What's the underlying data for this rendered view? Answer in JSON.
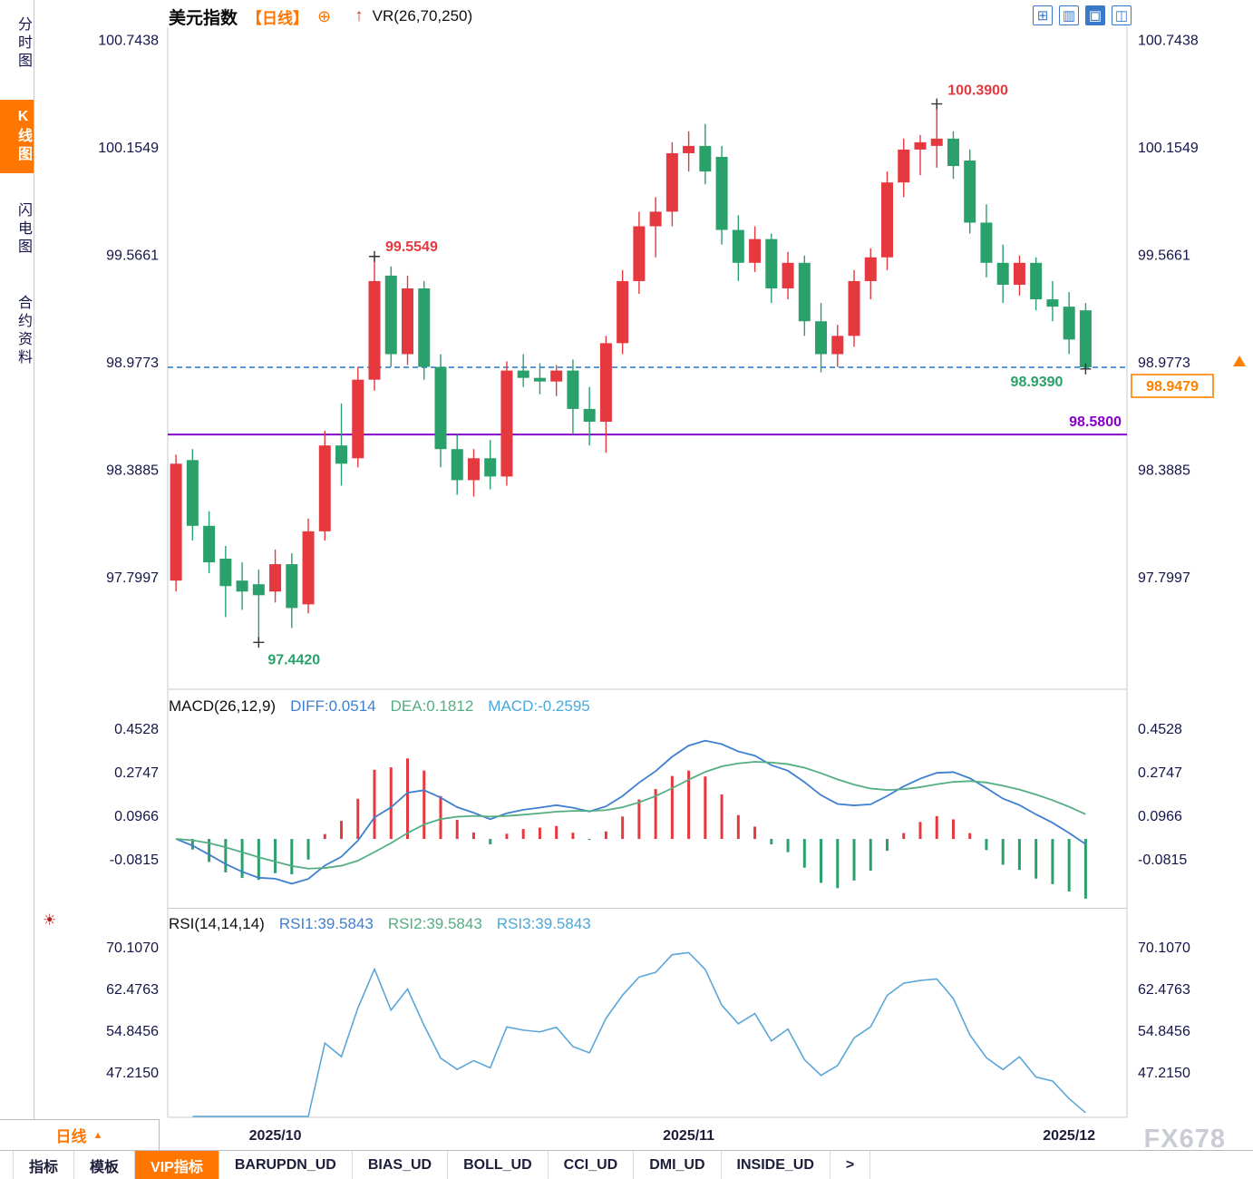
{
  "header": {
    "symbol": "美元指数",
    "period_tag": "【日线】",
    "indicator_label": "VR(26,70,250)",
    "icons": {
      "add_icon": "⊕",
      "up_arrow_icon": "↑"
    },
    "layout_icons": [
      {
        "name": "layout-quad-icon",
        "glyph": "⊞",
        "active": false
      },
      {
        "name": "layout-columns-icon",
        "glyph": "▥",
        "active": false
      },
      {
        "name": "layout-chart-icon",
        "glyph": "▣",
        "active": true
      },
      {
        "name": "layout-split-icon",
        "glyph": "◫",
        "active": false
      }
    ]
  },
  "sidebar": {
    "items": [
      {
        "label": "分时图",
        "active": false
      },
      {
        "label": "K线图",
        "active": true
      },
      {
        "label": "闪电图",
        "active": false
      },
      {
        "label": "合约资料",
        "active": false
      }
    ]
  },
  "indicator_settings_icon": "☀",
  "bottom": {
    "period_label": "日线",
    "dropdown_icon": "▲",
    "watermark": "FX678",
    "tabs": [
      {
        "label": "指标",
        "active": false
      },
      {
        "label": "模板",
        "active": false
      },
      {
        "label": "VIP指标",
        "active": true
      },
      {
        "label": "BARUPDN_UD",
        "active": false
      },
      {
        "label": "BIAS_UD",
        "active": false
      },
      {
        "label": "BOLL_UD",
        "active": false
      },
      {
        "label": "CCI_UD",
        "active": false
      },
      {
        "label": "DMI_UD",
        "active": false
      },
      {
        "label": "INSIDE_UD",
        "active": false
      },
      {
        "label": ">",
        "active": false
      }
    ]
  },
  "chart_data": {
    "type": "candlestick",
    "title": "美元指数 日线",
    "price_pane": {
      "ticks": [
        "100.7438",
        "100.1549",
        "99.5661",
        "98.9773",
        "98.3885",
        "97.7997"
      ],
      "range": [
        97.2,
        100.81
      ],
      "month_ticks": [
        {
          "label": "2025/10",
          "index": 6
        },
        {
          "label": "2025/11",
          "index": 31
        },
        {
          "label": "2025/12",
          "index": 54
        }
      ],
      "candles": [
        [
          97.78,
          98.47,
          97.72,
          98.42
        ],
        [
          98.44,
          98.5,
          98.0,
          98.08
        ],
        [
          98.08,
          98.16,
          97.82,
          97.88
        ],
        [
          97.9,
          97.97,
          97.58,
          97.75
        ],
        [
          97.78,
          97.88,
          97.62,
          97.72
        ],
        [
          97.76,
          97.84,
          97.442,
          97.7
        ],
        [
          97.72,
          97.95,
          97.66,
          97.87
        ],
        [
          97.87,
          97.93,
          97.52,
          97.63
        ],
        [
          97.65,
          98.12,
          97.6,
          98.05
        ],
        [
          98.05,
          98.6,
          98.0,
          98.52
        ],
        [
          98.52,
          98.75,
          98.3,
          98.42
        ],
        [
          98.45,
          98.95,
          98.4,
          98.88
        ],
        [
          98.88,
          99.5549,
          98.82,
          99.42
        ],
        [
          99.45,
          99.5,
          98.95,
          99.02
        ],
        [
          99.02,
          99.45,
          98.96,
          99.38
        ],
        [
          99.38,
          99.42,
          98.88,
          98.95
        ],
        [
          98.95,
          99.02,
          98.4,
          98.5
        ],
        [
          98.5,
          98.58,
          98.25,
          98.33
        ],
        [
          98.33,
          98.5,
          98.24,
          98.45
        ],
        [
          98.45,
          98.55,
          98.28,
          98.35
        ],
        [
          98.35,
          98.98,
          98.3,
          98.93
        ],
        [
          98.93,
          99.02,
          98.84,
          98.89
        ],
        [
          98.89,
          98.97,
          98.8,
          98.87
        ],
        [
          98.87,
          98.96,
          98.79,
          98.93
        ],
        [
          98.93,
          98.99,
          98.58,
          98.72
        ],
        [
          98.72,
          98.84,
          98.52,
          98.65
        ],
        [
          98.65,
          99.12,
          98.48,
          99.08
        ],
        [
          99.08,
          99.48,
          99.02,
          99.42
        ],
        [
          99.42,
          99.8,
          99.35,
          99.72
        ],
        [
          99.72,
          99.88,
          99.55,
          99.8
        ],
        [
          99.8,
          100.18,
          99.72,
          100.12
        ],
        [
          100.12,
          100.24,
          100.02,
          100.16
        ],
        [
          100.16,
          100.28,
          99.95,
          100.02
        ],
        [
          100.1,
          100.16,
          99.62,
          99.7
        ],
        [
          99.7,
          99.78,
          99.42,
          99.52
        ],
        [
          99.52,
          99.72,
          99.47,
          99.65
        ],
        [
          99.65,
          99.68,
          99.3,
          99.38
        ],
        [
          99.38,
          99.58,
          99.32,
          99.52
        ],
        [
          99.52,
          99.56,
          99.12,
          99.2
        ],
        [
          99.2,
          99.3,
          98.92,
          99.02
        ],
        [
          99.02,
          99.18,
          98.95,
          99.12
        ],
        [
          99.12,
          99.48,
          99.06,
          99.42
        ],
        [
          99.42,
          99.6,
          99.32,
          99.55
        ],
        [
          99.55,
          100.02,
          99.48,
          99.96
        ],
        [
          99.96,
          100.2,
          99.88,
          100.14
        ],
        [
          100.14,
          100.22,
          100.0,
          100.18
        ],
        [
          100.16,
          100.39,
          100.04,
          100.2
        ],
        [
          100.2,
          100.24,
          99.98,
          100.05
        ],
        [
          100.08,
          100.14,
          99.68,
          99.74
        ],
        [
          99.74,
          99.84,
          99.44,
          99.52
        ],
        [
          99.52,
          99.62,
          99.3,
          99.4
        ],
        [
          99.4,
          99.56,
          99.34,
          99.52
        ],
        [
          99.52,
          99.55,
          99.26,
          99.32
        ],
        [
          99.32,
          99.42,
          99.2,
          99.28
        ],
        [
          99.28,
          99.36,
          99.02,
          99.1
        ],
        [
          99.26,
          99.3,
          98.939,
          98.9479
        ]
      ],
      "annotations": {
        "swing_high": {
          "index": 12,
          "price": 99.5549,
          "label": "99.5549"
        },
        "low": {
          "index": 5,
          "price": 97.442,
          "label": "97.4420"
        },
        "peak": {
          "index": 46,
          "price": 100.39,
          "label": "100.3900"
        },
        "last_low": {
          "index": 55,
          "price": 98.939,
          "label": "98.9390"
        },
        "support_line": {
          "price": 98.58,
          "label": "98.5800"
        },
        "current_price": {
          "price": 98.9479,
          "label": "98.9479"
        }
      }
    },
    "macd_pane": {
      "title": "MACD(26,12,9)",
      "diff_label": "DIFF:0.0514",
      "dea_label": "DEA:0.1812",
      "macd_label": "MACD:-0.2595",
      "ticks": [
        "0.4528",
        "0.2747",
        "0.0966",
        "-0.0815"
      ],
      "range": [
        -0.278,
        0.601
      ],
      "params": {
        "slow": 26,
        "fast": 12,
        "signal": 9
      }
    },
    "rsi_pane": {
      "title": "RSI(14,14,14)",
      "rsi1_label": "RSI1:39.5843",
      "rsi2_label": "RSI2:39.5843",
      "rsi3_label": "RSI3:39.5843",
      "ticks": [
        "70.1070",
        "62.4763",
        "54.8456",
        "47.2150"
      ],
      "range": [
        38.9,
        76.9
      ],
      "period": 14
    },
    "colors": {
      "up": "#e5383f",
      "down": "#2aa06a",
      "diff_line": "#3f7fd0",
      "dea_line": "#53ae82",
      "rsi_line": "#5ba6d9",
      "support_line": "#8800cc",
      "current_line": "#2277cc",
      "price_tag": "#ff8000",
      "frame": "#c9c9d0"
    }
  }
}
